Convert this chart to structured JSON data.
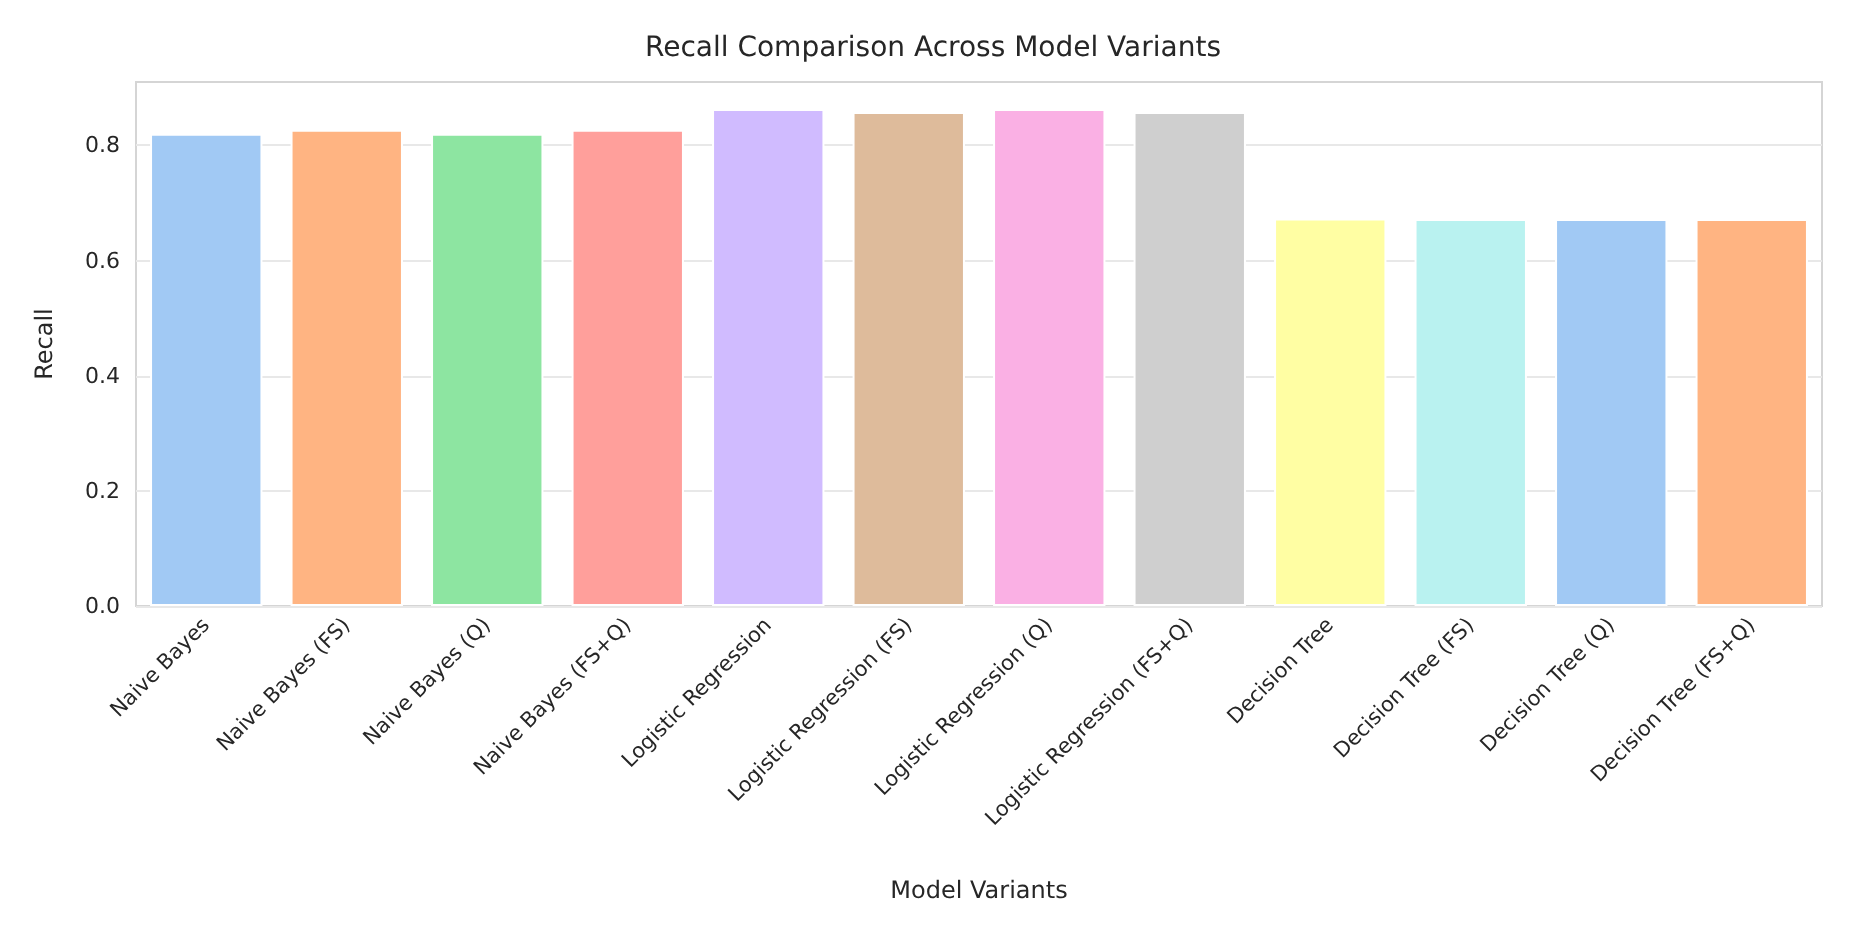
{
  "chart_data": {
    "type": "bar",
    "title": "Recall Comparison Across Model Variants",
    "xlabel": "Model Variants",
    "ylabel": "Recall",
    "categories": [
      "Naive Bayes",
      "Naive Bayes (FS)",
      "Naive Bayes (Q)",
      "Naive Bayes (FS+Q)",
      "Logistic Regression",
      "Logistic Regression (FS)",
      "Logistic Regression (Q)",
      "Logistic Regression (FS+Q)",
      "Decision Tree",
      "Decision Tree (FS)",
      "Decision Tree (Q)",
      "Decision Tree (FS+Q)"
    ],
    "values": [
      0.82,
      0.827,
      0.82,
      0.827,
      0.863,
      0.858,
      0.863,
      0.858,
      0.673,
      0.672,
      0.672,
      0.672
    ],
    "colors": [
      "#a1c9f4",
      "#ffb482",
      "#8de5a1",
      "#ff9f9b",
      "#d0bbff",
      "#debb9b",
      "#fab0e4",
      "#cfcfcf",
      "#fffea3",
      "#b9f2f0",
      "#a1c9f4",
      "#ffb482"
    ],
    "ylim": [
      0,
      0.91
    ],
    "yticks": [
      {
        "value": 0,
        "label": "0.0"
      },
      {
        "value": 0.2,
        "label": "0.2"
      },
      {
        "value": 0.4,
        "label": "0.4"
      },
      {
        "value": 0.6,
        "label": "0.6"
      },
      {
        "value": 0.8,
        "label": "0.8"
      }
    ],
    "grid": "y"
  }
}
